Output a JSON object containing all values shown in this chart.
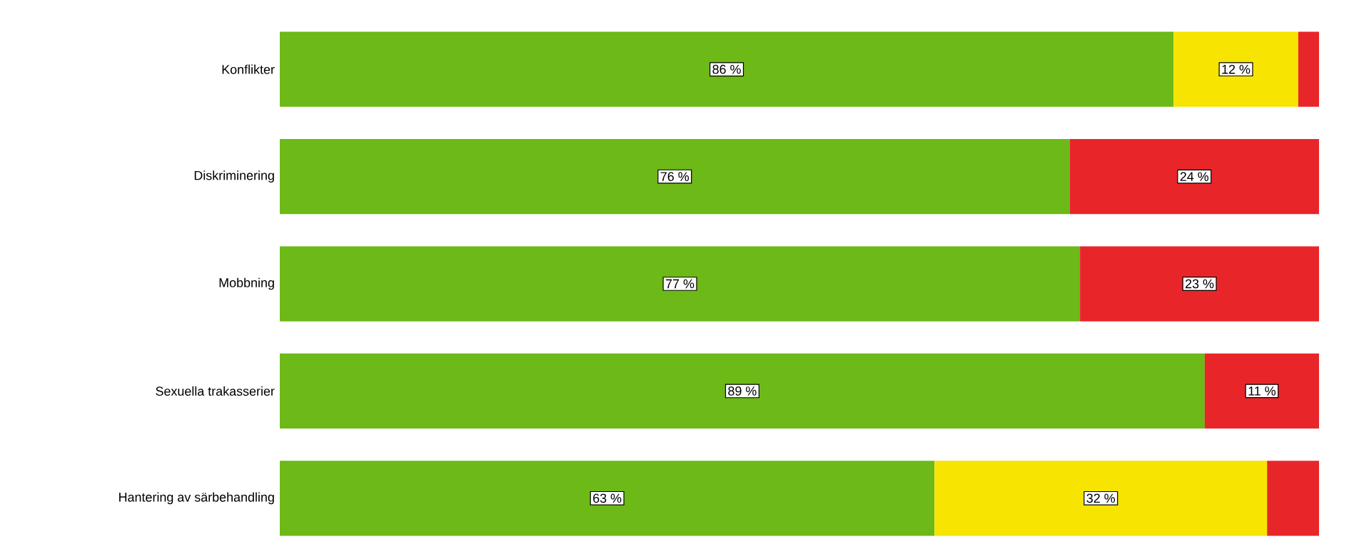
{
  "chart_data": {
    "type": "bar",
    "orientation": "horizontal",
    "stacked": true,
    "categories": [
      "Konflikter",
      "Diskriminering",
      "Mobbning",
      "Sexuella trakasserier",
      "Hantering av särbehandling"
    ],
    "xlim": [
      0,
      100
    ],
    "series": [
      {
        "color": "#6cb917",
        "values": [
          86,
          76,
          77,
          89,
          63
        ],
        "value_labels": [
          "86 %",
          "76 %",
          "77 %",
          "89 %",
          "63 %"
        ]
      },
      {
        "color": "#f7e400",
        "values": [
          12,
          0,
          0,
          0,
          32
        ],
        "value_labels": [
          "12 %",
          null,
          null,
          null,
          "32 %"
        ]
      },
      {
        "color": "#e8262a",
        "values": [
          2,
          24,
          23,
          11,
          5
        ],
        "value_labels": [
          null,
          "24 %",
          "23 %",
          "11 %",
          null
        ]
      }
    ]
  }
}
